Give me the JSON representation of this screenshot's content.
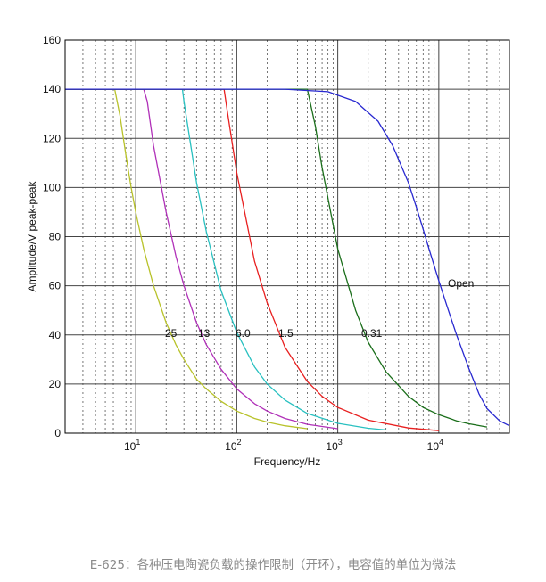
{
  "chart_data": {
    "type": "line",
    "xlabel": "Frequency/Hz",
    "ylabel": "Amplitude/V peak-peak",
    "xscale": "log",
    "xlim": [
      2,
      50000
    ],
    "ylim": [
      0,
      160
    ],
    "grid": true,
    "x_ticks": [
      {
        "value": 10,
        "base": "10",
        "exp": "1"
      },
      {
        "value": 100,
        "base": "10",
        "exp": "2"
      },
      {
        "value": 1000,
        "base": "10",
        "exp": "3"
      },
      {
        "value": 10000,
        "base": "10",
        "exp": "4"
      }
    ],
    "y_ticks": [
      0,
      20,
      40,
      60,
      80,
      100,
      120,
      140,
      160
    ],
    "series": [
      {
        "name": "25",
        "color": "#b8c22a",
        "x": [
          2,
          6.2,
          7,
          8,
          9,
          10,
          12,
          15,
          20,
          25,
          30,
          40,
          50,
          70,
          100,
          150,
          200,
          300,
          500
        ],
        "y": [
          140,
          140,
          129,
          113,
          100,
          90,
          75,
          60,
          45,
          36,
          30,
          22,
          18,
          13,
          9,
          6,
          4.5,
          3,
          1.8
        ]
      },
      {
        "name": "13",
        "color": "#b030b8",
        "x": [
          2,
          12,
          13,
          15,
          20,
          25,
          30,
          40,
          50,
          70,
          100,
          150,
          200,
          300,
          500,
          1000
        ],
        "y": [
          140,
          140,
          135,
          117,
          90,
          72,
          60,
          45,
          36,
          26,
          18,
          12,
          9,
          6,
          3.6,
          1.8
        ]
      },
      {
        "name": "6.0",
        "color": "#28c0c0",
        "x": [
          2,
          29,
          30,
          40,
          50,
          70,
          100,
          150,
          200,
          300,
          500,
          1000,
          2000,
          3000
        ],
        "y": [
          140,
          140,
          135,
          102,
          82,
          58,
          41,
          27,
          20,
          13.5,
          8,
          4,
          2,
          1.3
        ]
      },
      {
        "name": "1.5",
        "color": "#e82020",
        "x": [
          2,
          75,
          80,
          100,
          150,
          200,
          300,
          500,
          700,
          1000,
          2000,
          5000,
          10000
        ],
        "y": [
          140,
          140,
          132,
          106,
          70,
          53,
          35,
          21,
          15,
          10.5,
          5.3,
          2.1,
          1
        ]
      },
      {
        "name": "0.31",
        "color": "#1a6e1a",
        "x": [
          2,
          500,
          600,
          700,
          1000,
          1500,
          2000,
          3000,
          5000,
          7000,
          10000,
          15000,
          20000,
          30000
        ],
        "y": [
          140,
          140,
          125,
          108,
          75,
          50,
          37,
          25,
          15,
          10.5,
          7.5,
          5,
          3.8,
          2.5
        ]
      },
      {
        "name": "Open",
        "color": "#2828d0",
        "x": [
          2,
          300,
          800,
          1500,
          2500,
          3500,
          5000,
          6000,
          7000,
          8000,
          10000,
          12000,
          15000,
          20000,
          25000,
          30000,
          40000,
          50000
        ],
        "y": [
          140,
          140,
          139,
          135,
          127,
          117,
          102,
          92,
          83,
          75,
          62,
          52,
          40,
          26,
          16,
          10,
          5,
          3
        ]
      }
    ]
  },
  "caption": "E-625：各种压电陶瓷负载的操作限制（开环），电容值的单位为微法"
}
